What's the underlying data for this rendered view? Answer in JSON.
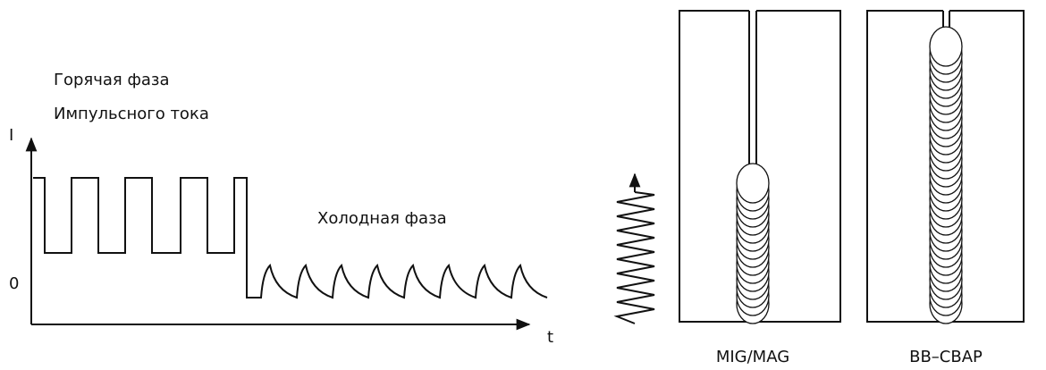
{
  "hot_phase": {
    "line1": "Горячая фаза",
    "line2": "Импульсного тока"
  },
  "axes": {
    "y_label": "I",
    "zero_label": "0",
    "x_label": "t"
  },
  "cold_phase": "Холодная фаза",
  "panels": {
    "left": "MIG/MAG",
    "right": "ВВ–СВАР"
  }
}
